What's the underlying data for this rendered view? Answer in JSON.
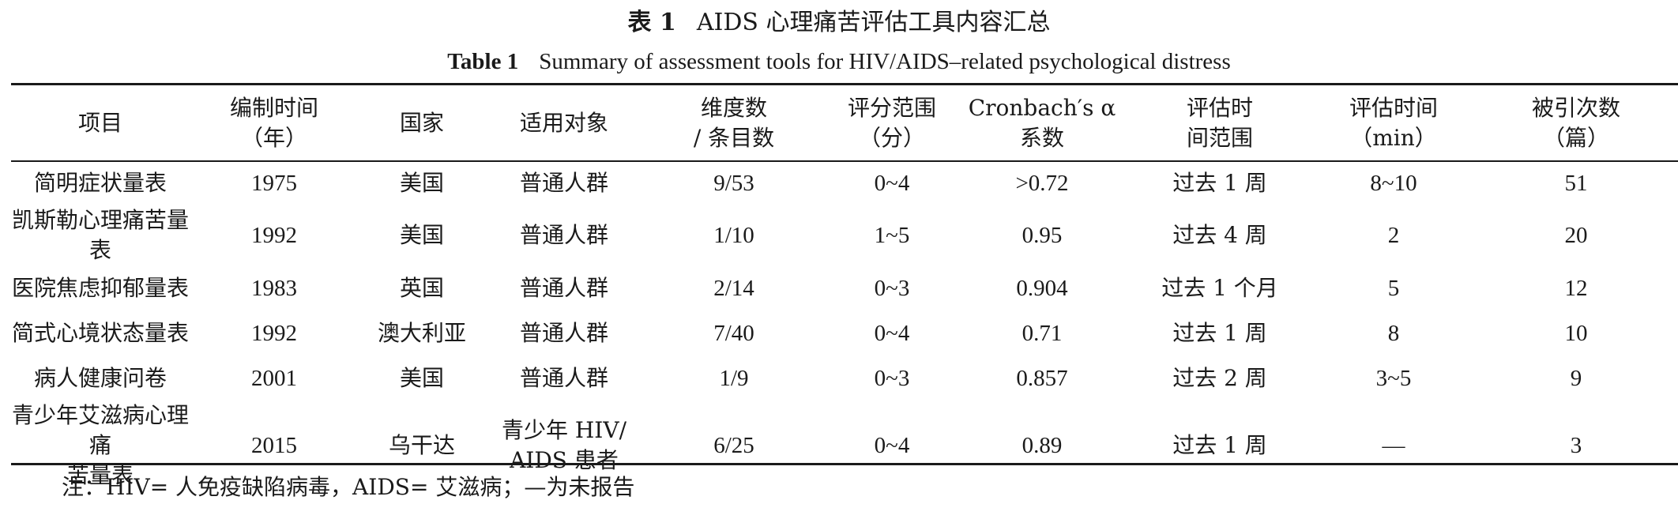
{
  "title_cn": {
    "label": "表 1",
    "text": "AIDS 心理痛苦评估工具内容汇总"
  },
  "title_en": {
    "label": "Table 1",
    "text": "Summary of assessment tools for HIV/AIDS–related psychological distress"
  },
  "headers": [
    {
      "l1": "项目",
      "l2": ""
    },
    {
      "l1": "编制时间",
      "l2": "（年）"
    },
    {
      "l1": "国家",
      "l2": ""
    },
    {
      "l1": "适用对象",
      "l2": ""
    },
    {
      "l1": "维度数",
      "l2": "/ 条目数"
    },
    {
      "l1": "评分范围",
      "l2": "（分）"
    },
    {
      "l1": "Cronbach′s α",
      "l2": "系数"
    },
    {
      "l1": "评估时",
      "l2": "间范围"
    },
    {
      "l1": "评估时间",
      "l2": "（min）"
    },
    {
      "l1": "被引次数",
      "l2": "（篇）"
    }
  ],
  "rows": [
    {
      "item": "简明症状量表",
      "item2": "",
      "year": "1975",
      "country": "美国",
      "target": "普通人群",
      "target2": "",
      "dims": "9/53",
      "range": "0~4",
      "alpha": ">0.72",
      "period": "过去 1 周",
      "time": "8~10",
      "cites": "51"
    },
    {
      "item": "凯斯勒心理痛苦量表",
      "item2": "",
      "year": "1992",
      "country": "美国",
      "target": "普通人群",
      "target2": "",
      "dims": "1/10",
      "range": "1~5",
      "alpha": "0.95",
      "period": "过去 4 周",
      "time": "2",
      "cites": "20"
    },
    {
      "item": "医院焦虑抑郁量表",
      "item2": "",
      "year": "1983",
      "country": "英国",
      "target": "普通人群",
      "target2": "",
      "dims": "2/14",
      "range": "0~3",
      "alpha": "0.904",
      "period": "过去 1 个月",
      "time": "5",
      "cites": "12"
    },
    {
      "item": "简式心境状态量表",
      "item2": "",
      "year": "1992",
      "country": "澳大利亚",
      "target": "普通人群",
      "target2": "",
      "dims": "7/40",
      "range": "0~4",
      "alpha": "0.71",
      "period": "过去 1 周",
      "time": "8",
      "cites": "10"
    },
    {
      "item": "病人健康问卷",
      "item2": "",
      "year": "2001",
      "country": "美国",
      "target": "普通人群",
      "target2": "",
      "dims": "1/9",
      "range": "0~3",
      "alpha": "0.857",
      "period": "过去 2 周",
      "time": "3~5",
      "cites": "9"
    },
    {
      "item": "青少年艾滋病心理痛",
      "item2": "苦量表",
      "year": "2015",
      "country": "乌干达",
      "target": "青少年 HIV/",
      "target2": "AIDS 患者",
      "dims": "6/25",
      "range": "0~4",
      "alpha": "0.89",
      "period": "过去 1 周",
      "time": "—",
      "cites": "3"
    }
  ],
  "note": "注：HIV= 人免疫缺陷病毒，AIDS= 艾滋病；—为未报告"
}
